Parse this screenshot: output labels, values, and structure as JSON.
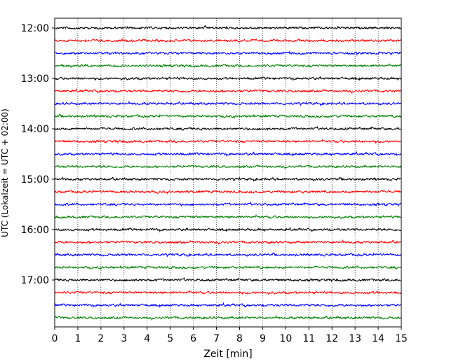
{
  "chart_data": {
    "type": "line",
    "title": "",
    "xlabel": "Zeit  [min]",
    "ylabel": "UTC (Lokalzeit = UTC + 02:00)",
    "xlim": [
      0,
      15
    ],
    "x_ticks": [
      0,
      1,
      2,
      3,
      4,
      5,
      6,
      7,
      8,
      9,
      10,
      11,
      12,
      13,
      14,
      15
    ],
    "x_tick_labels": [
      "0",
      "1",
      "2",
      "3",
      "4",
      "5",
      "6",
      "7",
      "8",
      "9",
      "10",
      "11",
      "12",
      "13",
      "14",
      "15"
    ],
    "y_tick_labels": [
      "12:00",
      "13:00",
      "14:00",
      "15:00",
      "16:00",
      "17:00"
    ],
    "grid": "vertical dotted at each minute",
    "trace_colors": [
      "#000000",
      "#ff0000",
      "#0000ff",
      "#008000"
    ],
    "series": [
      {
        "start": "12:00",
        "color": "#000000",
        "amplitude": 0.25
      },
      {
        "start": "12:15",
        "color": "#ff0000",
        "amplitude": 0.25
      },
      {
        "start": "12:30",
        "color": "#0000ff",
        "amplitude": 0.25
      },
      {
        "start": "12:45",
        "color": "#008000",
        "amplitude": 0.25
      },
      {
        "start": "13:00",
        "color": "#000000",
        "amplitude": 0.25
      },
      {
        "start": "13:15",
        "color": "#ff0000",
        "amplitude": 0.25
      },
      {
        "start": "13:30",
        "color": "#0000ff",
        "amplitude": 0.25
      },
      {
        "start": "13:45",
        "color": "#008000",
        "amplitude": 0.25
      },
      {
        "start": "14:00",
        "color": "#000000",
        "amplitude": 0.25
      },
      {
        "start": "14:15",
        "color": "#ff0000",
        "amplitude": 0.25
      },
      {
        "start": "14:30",
        "color": "#0000ff",
        "amplitude": 0.25
      },
      {
        "start": "14:45",
        "color": "#008000",
        "amplitude": 0.25
      },
      {
        "start": "15:00",
        "color": "#000000",
        "amplitude": 0.25
      },
      {
        "start": "15:15",
        "color": "#ff0000",
        "amplitude": 0.25
      },
      {
        "start": "15:30",
        "color": "#0000ff",
        "amplitude": 0.25
      },
      {
        "start": "15:45",
        "color": "#008000",
        "amplitude": 0.25
      },
      {
        "start": "16:00",
        "color": "#000000",
        "amplitude": 0.25
      },
      {
        "start": "16:15",
        "color": "#ff0000",
        "amplitude": 0.25
      },
      {
        "start": "16:30",
        "color": "#0000ff",
        "amplitude": 0.25
      },
      {
        "start": "16:45",
        "color": "#008000",
        "amplitude": 0.25
      },
      {
        "start": "17:00",
        "color": "#000000",
        "amplitude": 0.25
      },
      {
        "start": "17:15",
        "color": "#ff0000",
        "amplitude": 0.25
      },
      {
        "start": "17:30",
        "color": "#0000ff",
        "amplitude": 0.25
      },
      {
        "start": "17:45",
        "color": "#008000",
        "amplitude": 0.25
      }
    ]
  }
}
